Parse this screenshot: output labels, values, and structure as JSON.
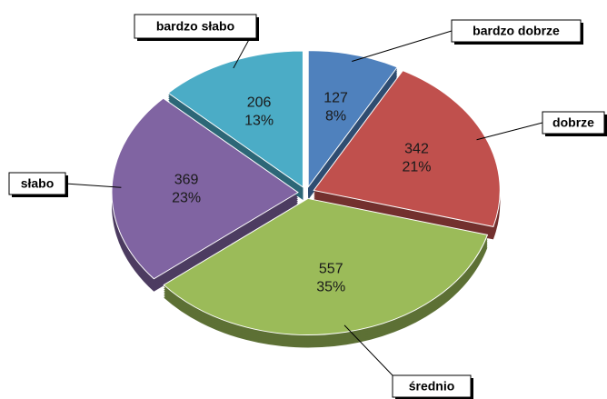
{
  "chart_data": {
    "type": "pie",
    "categories": [
      "bardzo dobrze",
      "dobrze",
      "średnio",
      "słabo",
      "bardzo słabo"
    ],
    "values": [
      127,
      342,
      557,
      369,
      206
    ],
    "percent_labels": [
      "8%",
      "21%",
      "35%",
      "23%",
      "13%"
    ],
    "colors": [
      "#4f81bd",
      "#c0504d",
      "#9bbb59",
      "#8064a2",
      "#4bacc6"
    ]
  }
}
